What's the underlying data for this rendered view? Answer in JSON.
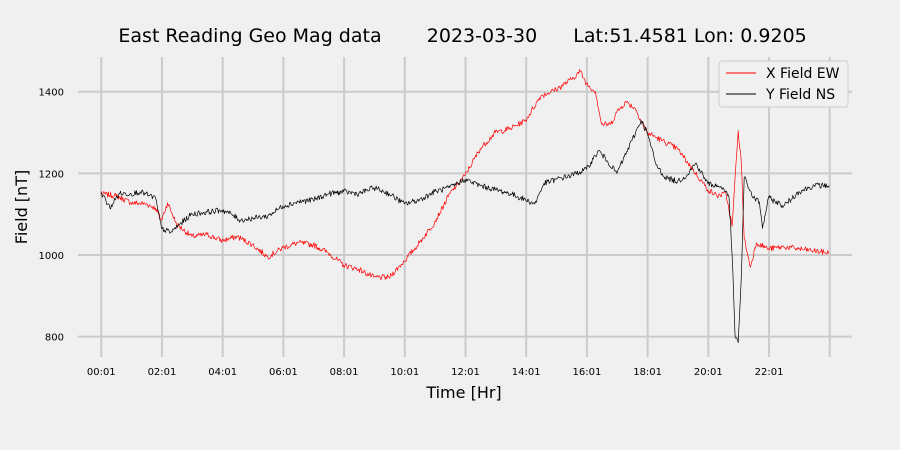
{
  "chart_data": {
    "type": "line",
    "title_parts": [
      "East Reading Geo Mag data",
      "2023-03-30",
      "Lat:51.4581  Lon: 0.9205"
    ],
    "xlabel": "Time  [Hr]",
    "ylabel": "Field  [nT]",
    "x_unit": "hours",
    "xlim": [
      -0.75,
      24.75
    ],
    "ylim": [
      750,
      1485
    ],
    "x_ticks": [
      {
        "x": 0.0167,
        "label": "00:01"
      },
      {
        "x": 2.0167,
        "label": "02:01"
      },
      {
        "x": 4.0167,
        "label": "04:01"
      },
      {
        "x": 6.0167,
        "label": "06:01"
      },
      {
        "x": 8.0167,
        "label": "08:01"
      },
      {
        "x": 10.0167,
        "label": "10:01"
      },
      {
        "x": 12.0167,
        "label": "12:01"
      },
      {
        "x": 14.0167,
        "label": "14:01"
      },
      {
        "x": 16.0167,
        "label": "16:01"
      },
      {
        "x": 18.0167,
        "label": "18:01"
      },
      {
        "x": 20.0167,
        "label": "20:01"
      },
      {
        "x": 22.0167,
        "label": "22:01"
      },
      {
        "x": 24.0167,
        "label": ""
      }
    ],
    "y_ticks": [
      800,
      1000,
      1200,
      1400
    ],
    "grid": true,
    "legend_position": "top-right",
    "series": [
      {
        "name": "X Field EW",
        "color": "#ff0000",
        "points": [
          [
            0,
            1150
          ],
          [
            0.5,
            1145
          ],
          [
            1,
            1128
          ],
          [
            1.5,
            1125
          ],
          [
            1.8,
            1115
          ],
          [
            2,
            1085
          ],
          [
            2.2,
            1128
          ],
          [
            2.5,
            1075
          ],
          [
            3,
            1045
          ],
          [
            3.5,
            1050
          ],
          [
            4,
            1035
          ],
          [
            4.5,
            1045
          ],
          [
            5,
            1025
          ],
          [
            5.5,
            995
          ],
          [
            6,
            1018
          ],
          [
            6.5,
            1030
          ],
          [
            7,
            1025
          ],
          [
            7.5,
            1005
          ],
          [
            8,
            975
          ],
          [
            8.5,
            965
          ],
          [
            9,
            945
          ],
          [
            9.5,
            945
          ],
          [
            10,
            985
          ],
          [
            10.5,
            1030
          ],
          [
            11,
            1080
          ],
          [
            11.5,
            1150
          ],
          [
            12,
            1195
          ],
          [
            12.5,
            1260
          ],
          [
            13,
            1300
          ],
          [
            13.5,
            1310
          ],
          [
            14,
            1330
          ],
          [
            14.5,
            1390
          ],
          [
            15,
            1405
          ],
          [
            15.5,
            1430
          ],
          [
            15.8,
            1450
          ],
          [
            16,
            1420
          ],
          [
            16.3,
            1400
          ],
          [
            16.5,
            1320
          ],
          [
            16.8,
            1320
          ],
          [
            17,
            1350
          ],
          [
            17.3,
            1375
          ],
          [
            17.6,
            1360
          ],
          [
            18,
            1300
          ],
          [
            18.5,
            1280
          ],
          [
            19,
            1260
          ],
          [
            19.5,
            1210
          ],
          [
            20,
            1160
          ],
          [
            20.3,
            1145
          ],
          [
            20.6,
            1150
          ],
          [
            20.8,
            1070
          ],
          [
            21,
            1305
          ],
          [
            21.1,
            1230
          ],
          [
            21.2,
            1040
          ],
          [
            21.4,
            970
          ],
          [
            21.6,
            1030
          ],
          [
            22,
            1015
          ],
          [
            22.5,
            1020
          ],
          [
            23,
            1015
          ],
          [
            23.5,
            1010
          ],
          [
            24,
            1005
          ]
        ]
      },
      {
        "name": "Y Field NS",
        "color": "#000000",
        "points": [
          [
            0,
            1155
          ],
          [
            0.3,
            1115
          ],
          [
            0.6,
            1150
          ],
          [
            1,
            1150
          ],
          [
            1.3,
            1155
          ],
          [
            1.6,
            1145
          ],
          [
            1.8,
            1140
          ],
          [
            2,
            1065
          ],
          [
            2.3,
            1055
          ],
          [
            2.6,
            1075
          ],
          [
            3,
            1100
          ],
          [
            3.5,
            1105
          ],
          [
            4,
            1110
          ],
          [
            4.3,
            1100
          ],
          [
            4.6,
            1085
          ],
          [
            5,
            1090
          ],
          [
            5.5,
            1095
          ],
          [
            6,
            1120
          ],
          [
            6.5,
            1130
          ],
          [
            7,
            1135
          ],
          [
            7.5,
            1150
          ],
          [
            8,
            1155
          ],
          [
            8.5,
            1150
          ],
          [
            9,
            1165
          ],
          [
            9.5,
            1150
          ],
          [
            10,
            1125
          ],
          [
            10.5,
            1135
          ],
          [
            11,
            1155
          ],
          [
            11.5,
            1165
          ],
          [
            12,
            1185
          ],
          [
            12.5,
            1170
          ],
          [
            13,
            1160
          ],
          [
            13.5,
            1150
          ],
          [
            14,
            1135
          ],
          [
            14.3,
            1125
          ],
          [
            14.6,
            1175
          ],
          [
            15,
            1185
          ],
          [
            15.5,
            1195
          ],
          [
            16,
            1210
          ],
          [
            16.4,
            1255
          ],
          [
            16.7,
            1230
          ],
          [
            17,
            1200
          ],
          [
            17.5,
            1280
          ],
          [
            17.8,
            1330
          ],
          [
            18,
            1300
          ],
          [
            18.3,
            1220
          ],
          [
            18.6,
            1190
          ],
          [
            19,
            1180
          ],
          [
            19.3,
            1195
          ],
          [
            19.6,
            1225
          ],
          [
            20,
            1175
          ],
          [
            20.5,
            1165
          ],
          [
            20.7,
            1140
          ],
          [
            20.8,
            1000
          ],
          [
            20.9,
            800
          ],
          [
            21,
            785
          ],
          [
            21.1,
            940
          ],
          [
            21.2,
            1190
          ],
          [
            21.5,
            1140
          ],
          [
            21.7,
            1130
          ],
          [
            21.8,
            1065
          ],
          [
            22,
            1140
          ],
          [
            22.5,
            1120
          ],
          [
            23,
            1155
          ],
          [
            23.5,
            1170
          ],
          [
            24,
            1170
          ]
        ]
      }
    ]
  }
}
